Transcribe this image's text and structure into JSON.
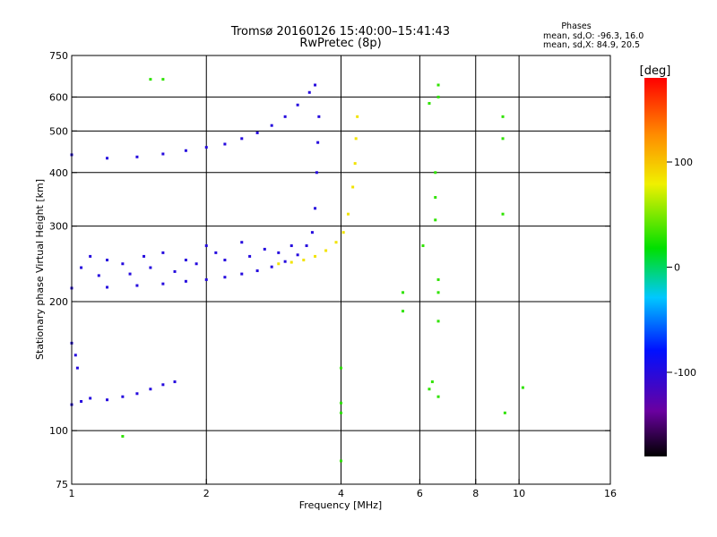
{
  "header": {
    "title_line1": "Tromsø 20160126 15:40:00–15:41:43",
    "title_line2": "RwPretec (8p)"
  },
  "stats": {
    "heading": "Phases",
    "line_o": "mean, sd,O: -96.3, 16.0",
    "line_x": "mean, sd,X:  84.9, 20.5"
  },
  "colorbar": {
    "unit": "[deg]",
    "ticks": [
      {
        "value": 100,
        "label": "100"
      },
      {
        "value": 0,
        "label": "0"
      },
      {
        "value": -100,
        "label": "-100"
      }
    ],
    "range": [
      -180,
      180
    ]
  },
  "chart_data": {
    "type": "scatter",
    "xlabel": "Frequency [MHz]",
    "ylabel": "Stationary phase Virtual Height [km]",
    "xscale": "log",
    "yscale": "log",
    "xlim": [
      1,
      16
    ],
    "ylim": [
      75,
      750
    ],
    "xticks": [
      {
        "v": 1,
        "label": "1"
      },
      {
        "v": 2,
        "label": "2"
      },
      {
        "v": 4,
        "label": "4"
      },
      {
        "v": 6,
        "label": "6"
      },
      {
        "v": 8,
        "label": "8"
      },
      {
        "v": 10,
        "label": "10"
      },
      {
        "v": 16,
        "label": "16"
      }
    ],
    "xgrid": [
      2,
      4,
      6,
      8,
      10
    ],
    "yticks": [
      {
        "v": 75,
        "label": "75"
      },
      {
        "v": 100,
        "label": "100"
      },
      {
        "v": 200,
        "label": "200"
      },
      {
        "v": 300,
        "label": "300"
      },
      {
        "v": 400,
        "label": "400"
      },
      {
        "v": 500,
        "label": "500"
      },
      {
        "v": 600,
        "label": "600"
      },
      {
        "v": 750,
        "label": "750"
      }
    ],
    "ygrid": [
      100,
      200,
      300,
      400,
      500,
      600
    ],
    "grid": true,
    "colorscale": "phase rainbow: black(-180) purple blue(-100) cyan green(0) yellow(100) orange red(180)",
    "traces": [
      {
        "name": "F-layer O trace lower branch",
        "phase": -100,
        "points": [
          [
            1.0,
            215
          ],
          [
            1.2,
            216
          ],
          [
            1.4,
            218
          ],
          [
            1.6,
            220
          ],
          [
            1.8,
            223
          ],
          [
            2.0,
            225
          ],
          [
            2.2,
            228
          ],
          [
            2.4,
            232
          ],
          [
            2.6,
            236
          ],
          [
            2.8,
            241
          ],
          [
            3.0,
            248
          ],
          [
            3.2,
            257
          ],
          [
            3.35,
            270
          ],
          [
            3.45,
            290
          ],
          [
            3.5,
            330
          ],
          [
            3.53,
            400
          ],
          [
            3.55,
            470
          ],
          [
            3.57,
            540
          ]
        ]
      },
      {
        "name": "F-layer O scatter",
        "phase": -100,
        "points": [
          [
            1.05,
            240
          ],
          [
            1.1,
            255
          ],
          [
            1.15,
            230
          ],
          [
            1.2,
            250
          ],
          [
            1.3,
            245
          ],
          [
            1.35,
            232
          ],
          [
            1.45,
            255
          ],
          [
            1.5,
            240
          ],
          [
            1.6,
            260
          ],
          [
            1.7,
            235
          ],
          [
            1.8,
            250
          ],
          [
            1.9,
            245
          ],
          [
            2.0,
            270
          ],
          [
            2.1,
            260
          ],
          [
            2.2,
            250
          ],
          [
            2.4,
            275
          ],
          [
            2.5,
            255
          ],
          [
            2.7,
            265
          ],
          [
            2.9,
            260
          ],
          [
            3.1,
            270
          ]
        ]
      },
      {
        "name": "F-layer X trace",
        "phase": 85,
        "points": [
          [
            2.9,
            245
          ],
          [
            3.1,
            247
          ],
          [
            3.3,
            250
          ],
          [
            3.5,
            255
          ],
          [
            3.7,
            263
          ],
          [
            3.9,
            275
          ],
          [
            4.05,
            290
          ],
          [
            4.15,
            320
          ],
          [
            4.25,
            370
          ],
          [
            4.3,
            420
          ],
          [
            4.32,
            480
          ],
          [
            4.35,
            540
          ]
        ]
      },
      {
        "name": "F2 upper O trace",
        "phase": -100,
        "points": [
          [
            1.0,
            440
          ],
          [
            1.2,
            432
          ],
          [
            1.4,
            435
          ],
          [
            1.6,
            442
          ],
          [
            1.8,
            450
          ],
          [
            2.0,
            458
          ],
          [
            2.2,
            466
          ],
          [
            2.4,
            480
          ],
          [
            2.6,
            495
          ],
          [
            2.8,
            515
          ],
          [
            3.0,
            540
          ],
          [
            3.2,
            575
          ],
          [
            3.4,
            615
          ],
          [
            3.5,
            640
          ]
        ]
      },
      {
        "name": "Low-frequency echoes",
        "phase": -100,
        "points": [
          [
            1.0,
            115
          ],
          [
            1.05,
            117
          ],
          [
            1.1,
            119
          ],
          [
            1.2,
            118
          ],
          [
            1.3,
            120
          ],
          [
            1.4,
            122
          ],
          [
            1.5,
            125
          ],
          [
            1.6,
            128
          ],
          [
            1.7,
            130
          ],
          [
            1.0,
            160
          ],
          [
            1.02,
            150
          ],
          [
            1.03,
            140
          ]
        ]
      },
      {
        "name": "Isolated points",
        "phase": 30,
        "points": [
          [
            1.5,
            660
          ],
          [
            1.6,
            660
          ],
          [
            6.3,
            580
          ],
          [
            6.6,
            640
          ],
          [
            6.6,
            600
          ],
          [
            9.2,
            540
          ],
          [
            9.2,
            480
          ],
          [
            9.2,
            320
          ],
          [
            6.5,
            400
          ],
          [
            6.5,
            350
          ],
          [
            6.5,
            310
          ],
          [
            6.1,
            270
          ],
          [
            6.6,
            180
          ],
          [
            6.6,
            225
          ],
          [
            6.6,
            210
          ],
          [
            5.5,
            210
          ],
          [
            5.5,
            190
          ],
          [
            4.0,
            140
          ],
          [
            4.0,
            116
          ],
          [
            4.0,
            110
          ],
          [
            4.0,
            85
          ],
          [
            6.3,
            125
          ],
          [
            6.4,
            130
          ],
          [
            6.6,
            120
          ],
          [
            9.3,
            110
          ],
          [
            10.2,
            126
          ],
          [
            1.3,
            97
          ]
        ]
      }
    ]
  }
}
